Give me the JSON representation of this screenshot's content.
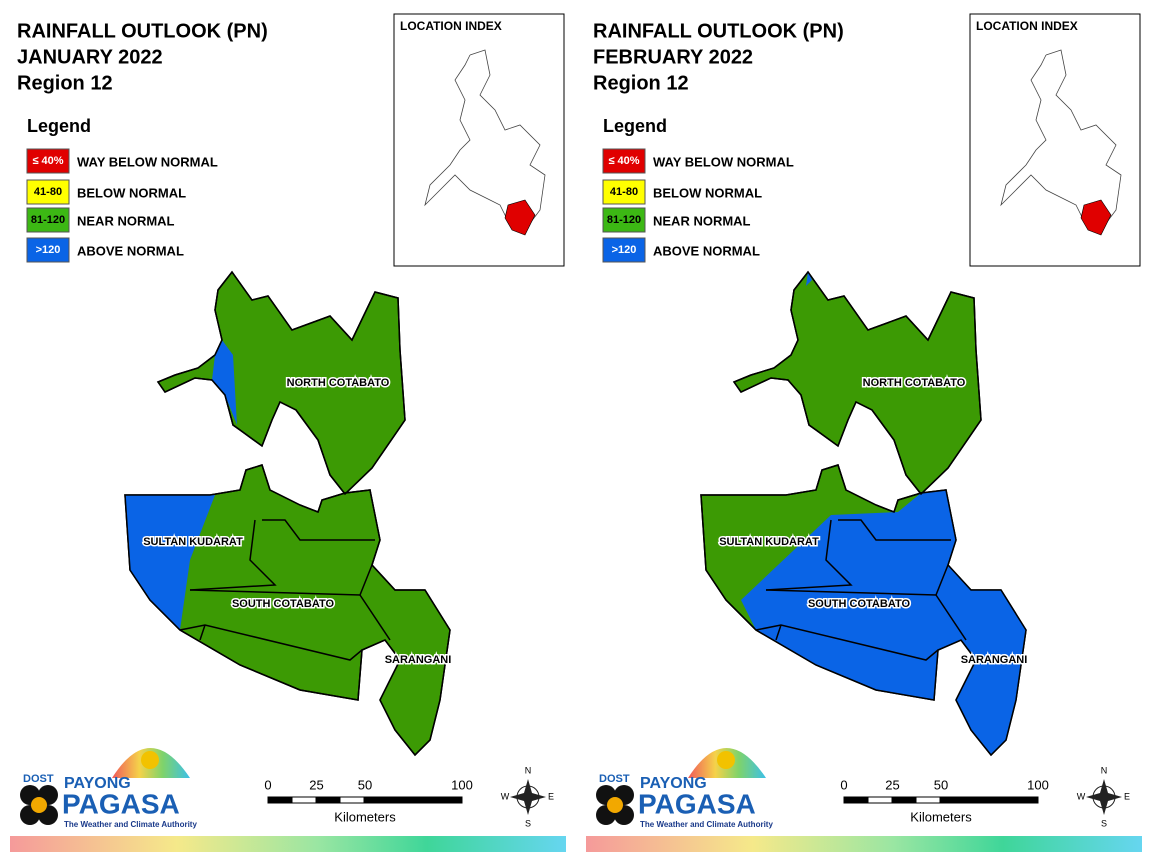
{
  "panels": [
    {
      "title": [
        "RAINFALL OUTLOOK (PN)",
        "JANUARY 2022",
        "Region 12"
      ],
      "legend_title": "Legend",
      "legend": [
        {
          "range": "≤ 40%",
          "label": "WAY BELOW NORMAL"
        },
        {
          "range": "41-80",
          "label": "BELOW NORMAL"
        },
        {
          "range": "81-120",
          "label": "NEAR NORMAL"
        },
        {
          "range": ">120",
          "label": "ABOVE NORMAL"
        }
      ],
      "location_index": "LOCATION INDEX",
      "regions": [
        "NORTH COTABATO",
        "SULTAN KUDARAT",
        "SOUTH COTABATO",
        "SARANGANI"
      ],
      "logo": {
        "dost": "DOST",
        "payong": "PAYONG",
        "pagasa": "PAGASA",
        "tagline": "The Weather and Climate Authority"
      },
      "scale": {
        "ticks": [
          0,
          25,
          50,
          100
        ],
        "unit": "Kilometers"
      },
      "compass": {
        "n": "N",
        "e": "E",
        "s": "S",
        "w": "W"
      }
    },
    {
      "title": [
        "RAINFALL OUTLOOK (PN)",
        "FEBRUARY 2022",
        "Region 12"
      ],
      "legend_title": "Legend",
      "legend": [
        {
          "range": "≤ 40%",
          "label": "WAY BELOW NORMAL"
        },
        {
          "range": "41-80",
          "label": "BELOW NORMAL"
        },
        {
          "range": "81-120",
          "label": "NEAR NORMAL"
        },
        {
          "range": ">120",
          "label": "ABOVE NORMAL"
        }
      ],
      "location_index": "LOCATION INDEX",
      "regions": [
        "NORTH COTABATO",
        "SULTAN KUDARAT",
        "SOUTH COTABATO",
        "SARANGANI"
      ],
      "logo": {
        "dost": "DOST",
        "payong": "PAYONG",
        "pagasa": "PAGASA",
        "tagline": "The Weather and Climate Authority"
      },
      "scale": {
        "ticks": [
          0,
          25,
          50,
          100
        ],
        "unit": "Kilometers"
      },
      "compass": {
        "n": "N",
        "e": "E",
        "s": "S",
        "w": "W"
      }
    }
  ]
}
